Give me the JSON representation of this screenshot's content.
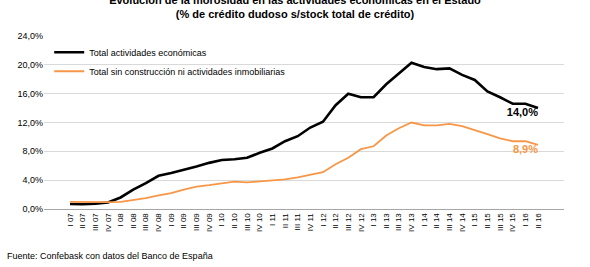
{
  "chart_data": {
    "type": "line",
    "title": "Evolución de la morosidad en las actividades económicas en el Estado",
    "subtitle": "(% de crédito dudoso s/stock total de crédito)",
    "source": "Fuente: Confebask con datos del Banco de España",
    "categories": [
      "I 07",
      "II 07",
      "III 07",
      "IV 07",
      "I 08",
      "II 08",
      "III 08",
      "IV 08",
      "I 09",
      "II 09",
      "III 09",
      "IV 09",
      "I 10",
      "II 10",
      "III 10",
      "IV 10",
      "I 11",
      "II 11",
      "III 11",
      "IV 11",
      "I 12",
      "II 12",
      "III 12",
      "IV 12",
      "I 13",
      "II 13",
      "III 13",
      "IV 13",
      "I 14",
      "II 14",
      "III 14",
      "IV 14",
      "I 15",
      "II 15",
      "III 15",
      "IV 15",
      "I 16",
      "II 16"
    ],
    "series": [
      {
        "name": "Total actividades económicas",
        "color": "#000000",
        "values": [
          0.7,
          0.65,
          0.75,
          0.9,
          1.6,
          2.7,
          3.6,
          4.6,
          5.0,
          5.4,
          5.9,
          6.4,
          6.8,
          6.9,
          7.1,
          7.8,
          8.4,
          9.4,
          10.1,
          11.3,
          12.1,
          14.4,
          16.0,
          15.5,
          15.5,
          17.3,
          18.8,
          20.3,
          19.7,
          19.4,
          19.5,
          18.6,
          17.9,
          16.3,
          15.5,
          14.6,
          14.6,
          14.0
        ],
        "value_labels": [
          null,
          null,
          null,
          null,
          null,
          null,
          null,
          null,
          null,
          null,
          null,
          null,
          null,
          null,
          null,
          null,
          null,
          null,
          null,
          null,
          null,
          null,
          null,
          null,
          null,
          null,
          null,
          null,
          null,
          null,
          null,
          null,
          null,
          null,
          null,
          null,
          null,
          "14,0%"
        ]
      },
      {
        "name": "Total sin construcción ni actividades inmobiliarias",
        "color": "#f79646",
        "values": [
          1.0,
          0.95,
          0.9,
          0.95,
          1.0,
          1.2,
          1.5,
          1.9,
          2.2,
          2.7,
          3.1,
          3.3,
          3.6,
          3.8,
          3.7,
          3.8,
          3.9,
          4.1,
          4.4,
          4.8,
          5.1,
          6.2,
          7.1,
          8.3,
          8.7,
          10.2,
          11.2,
          12.0,
          11.6,
          11.6,
          11.8,
          11.5,
          11.0,
          10.4,
          9.8,
          9.4,
          9.4,
          8.9
        ],
        "value_labels": [
          null,
          null,
          null,
          null,
          null,
          null,
          null,
          null,
          null,
          null,
          null,
          null,
          null,
          null,
          null,
          null,
          null,
          null,
          null,
          null,
          null,
          null,
          null,
          null,
          null,
          null,
          null,
          null,
          null,
          null,
          null,
          null,
          null,
          null,
          null,
          null,
          null,
          "8,9%"
        ]
      }
    ],
    "ylim": [
      0,
      24
    ],
    "yticks": [
      {
        "value": 0,
        "label": "0,0%"
      },
      {
        "value": 4,
        "label": "4,0%"
      },
      {
        "value": 8,
        "label": "8,0%"
      },
      {
        "value": 12,
        "label": "12,0%"
      },
      {
        "value": 16,
        "label": "16,0%"
      },
      {
        "value": 20,
        "label": "20,0%"
      },
      {
        "value": 24,
        "label": "24,0%"
      }
    ],
    "grid": true,
    "legend": "upper left",
    "data_labels": true
  }
}
